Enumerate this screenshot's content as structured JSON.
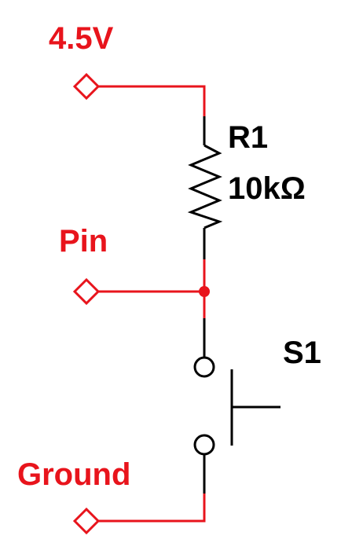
{
  "labels": {
    "supply": "4.5V",
    "pin": "Pin",
    "ground": "Ground",
    "resistor_ref": "R1",
    "resistor_value": "10kΩ",
    "switch_ref": "S1"
  },
  "colors": {
    "net": "#e8141c",
    "component": "#000000",
    "label_red": "#e8141c",
    "label_black": "#000000",
    "background": "#ffffff"
  }
}
